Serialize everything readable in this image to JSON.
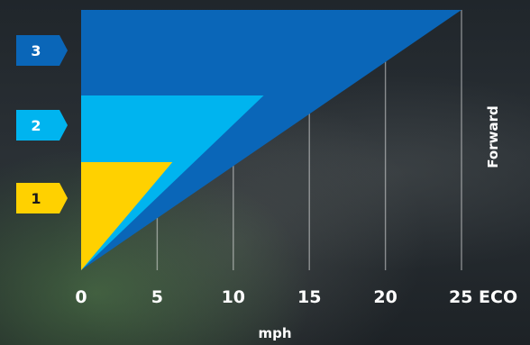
{
  "chart_data": {
    "type": "area",
    "xlabel": "mph",
    "ylabel": "Forward",
    "xlim": [
      0,
      25
    ],
    "x_ticks": [
      "0",
      "5",
      "10",
      "15",
      "20",
      "25 ECO"
    ],
    "series": [
      {
        "name": "3",
        "max_speed": 25,
        "color": "#0a66b8"
      },
      {
        "name": "2",
        "max_speed": 12,
        "color": "#00b4ef"
      },
      {
        "name": "1",
        "max_speed": 6,
        "color": "#ffd100"
      }
    ],
    "grid": true
  },
  "colors": {
    "gear3": "#0a66b8",
    "gear2": "#00b4ef",
    "gear1": "#ffd100",
    "text": "#ffffff"
  }
}
